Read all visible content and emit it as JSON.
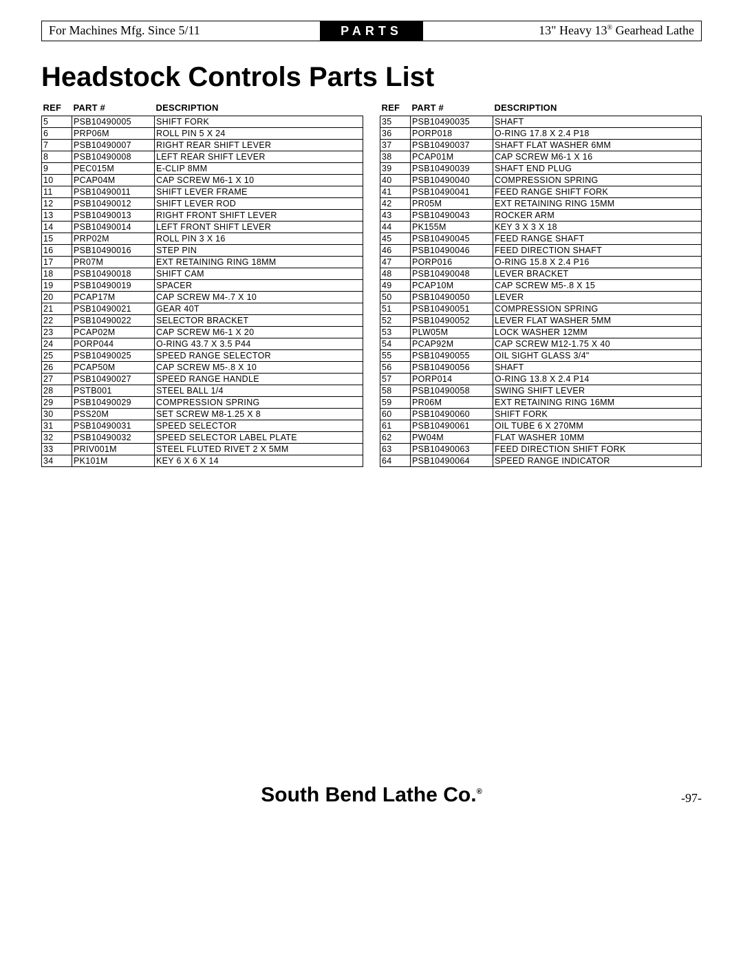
{
  "header": {
    "left": "For Machines Mfg. Since 5/11",
    "center": "PARTS",
    "right_prefix": "13\" Heavy 13",
    "right_suffix": " Gearhead Lathe"
  },
  "title": "Headstock Controls Parts List",
  "columns": {
    "ref": "REF",
    "part": "PART #",
    "desc": "DESCRIPTION"
  },
  "left_table": [
    {
      "ref": "5",
      "part": "PSB10490005",
      "desc": "SHIFT FORK"
    },
    {
      "ref": "6",
      "part": "PRP06M",
      "desc": "ROLL PIN 5 X 24"
    },
    {
      "ref": "7",
      "part": "PSB10490007",
      "desc": "RIGHT REAR SHIFT LEVER"
    },
    {
      "ref": "8",
      "part": "PSB10490008",
      "desc": "LEFT REAR SHIFT LEVER"
    },
    {
      "ref": "9",
      "part": "PEC015M",
      "desc": "E-CLIP 8MM"
    },
    {
      "ref": "10",
      "part": "PCAP04M",
      "desc": "CAP SCREW M6-1 X 10"
    },
    {
      "ref": "11",
      "part": "PSB10490011",
      "desc": "SHIFT LEVER FRAME"
    },
    {
      "ref": "12",
      "part": "PSB10490012",
      "desc": "SHIFT LEVER ROD"
    },
    {
      "ref": "13",
      "part": "PSB10490013",
      "desc": "RIGHT FRONT SHIFT LEVER"
    },
    {
      "ref": "14",
      "part": "PSB10490014",
      "desc": "LEFT FRONT SHIFT LEVER"
    },
    {
      "ref": "15",
      "part": "PRP02M",
      "desc": "ROLL PIN 3 X 16"
    },
    {
      "ref": "16",
      "part": "PSB10490016",
      "desc": "STEP PIN"
    },
    {
      "ref": "17",
      "part": "PR07M",
      "desc": "EXT RETAINING RING 18MM"
    },
    {
      "ref": "18",
      "part": "PSB10490018",
      "desc": "SHIFT CAM"
    },
    {
      "ref": "19",
      "part": "PSB10490019",
      "desc": "SPACER"
    },
    {
      "ref": "20",
      "part": "PCAP17M",
      "desc": "CAP SCREW M4-.7 X 10"
    },
    {
      "ref": "21",
      "part": "PSB10490021",
      "desc": "GEAR 40T"
    },
    {
      "ref": "22",
      "part": "PSB10490022",
      "desc": "SELECTOR BRACKET"
    },
    {
      "ref": "23",
      "part": "PCAP02M",
      "desc": "CAP SCREW M6-1 X 20"
    },
    {
      "ref": "24",
      "part": "PORP044",
      "desc": "O-RING 43.7 X 3.5 P44"
    },
    {
      "ref": "25",
      "part": "PSB10490025",
      "desc": "SPEED RANGE SELECTOR"
    },
    {
      "ref": "26",
      "part": "PCAP50M",
      "desc": "CAP SCREW M5-.8 X 10"
    },
    {
      "ref": "27",
      "part": "PSB10490027",
      "desc": "SPEED RANGE HANDLE"
    },
    {
      "ref": "28",
      "part": "PSTB001",
      "desc": "STEEL BALL 1/4"
    },
    {
      "ref": "29",
      "part": "PSB10490029",
      "desc": "COMPRESSION SPRING"
    },
    {
      "ref": "30",
      "part": "PSS20M",
      "desc": "SET SCREW M8-1.25 X 8"
    },
    {
      "ref": "31",
      "part": "PSB10490031",
      "desc": "SPEED SELECTOR"
    },
    {
      "ref": "32",
      "part": "PSB10490032",
      "desc": "SPEED SELECTOR LABEL PLATE"
    },
    {
      "ref": "33",
      "part": "PRIV001M",
      "desc": "STEEL FLUTED RIVET 2 X 5MM"
    },
    {
      "ref": "34",
      "part": "PK101M",
      "desc": "KEY 6 X 6 X 14"
    }
  ],
  "right_table": [
    {
      "ref": "35",
      "part": "PSB10490035",
      "desc": "SHAFT"
    },
    {
      "ref": "36",
      "part": "PORP018",
      "desc": "O-RING 17.8 X 2.4 P18"
    },
    {
      "ref": "37",
      "part": "PSB10490037",
      "desc": "SHAFT FLAT WASHER 6MM"
    },
    {
      "ref": "38",
      "part": "PCAP01M",
      "desc": "CAP SCREW M6-1 X 16"
    },
    {
      "ref": "39",
      "part": "PSB10490039",
      "desc": "SHAFT END PLUG"
    },
    {
      "ref": "40",
      "part": "PSB10490040",
      "desc": "COMPRESSION SPRING"
    },
    {
      "ref": "41",
      "part": "PSB10490041",
      "desc": "FEED RANGE SHIFT FORK"
    },
    {
      "ref": "42",
      "part": "PR05M",
      "desc": "EXT RETAINING RING 15MM"
    },
    {
      "ref": "43",
      "part": "PSB10490043",
      "desc": "ROCKER ARM"
    },
    {
      "ref": "44",
      "part": "PK155M",
      "desc": "KEY 3 X 3 X 18"
    },
    {
      "ref": "45",
      "part": "PSB10490045",
      "desc": "FEED RANGE SHAFT"
    },
    {
      "ref": "46",
      "part": "PSB10490046",
      "desc": "FEED DIRECTION SHAFT"
    },
    {
      "ref": "47",
      "part": "PORP016",
      "desc": "O-RING 15.8 X 2.4 P16"
    },
    {
      "ref": "48",
      "part": "PSB10490048",
      "desc": "LEVER BRACKET"
    },
    {
      "ref": "49",
      "part": "PCAP10M",
      "desc": "CAP SCREW M5-.8 X 15"
    },
    {
      "ref": "50",
      "part": "PSB10490050",
      "desc": "LEVER"
    },
    {
      "ref": "51",
      "part": "PSB10490051",
      "desc": "COMPRESSION SPRING"
    },
    {
      "ref": "52",
      "part": "PSB10490052",
      "desc": "LEVER FLAT WASHER 5MM"
    },
    {
      "ref": "53",
      "part": "PLW05M",
      "desc": "LOCK WASHER 12MM"
    },
    {
      "ref": "54",
      "part": "PCAP92M",
      "desc": "CAP SCREW M12-1.75 X 40"
    },
    {
      "ref": "55",
      "part": "PSB10490055",
      "desc": "OIL SIGHT GLASS 3/4\""
    },
    {
      "ref": "56",
      "part": "PSB10490056",
      "desc": "SHAFT"
    },
    {
      "ref": "57",
      "part": "PORP014",
      "desc": "O-RING 13.8 X 2.4 P14"
    },
    {
      "ref": "58",
      "part": "PSB10490058",
      "desc": "SWING SHIFT LEVER"
    },
    {
      "ref": "59",
      "part": "PR06M",
      "desc": "EXT RETAINING RING 16MM"
    },
    {
      "ref": "60",
      "part": "PSB10490060",
      "desc": "SHIFT FORK"
    },
    {
      "ref": "61",
      "part": "PSB10490061",
      "desc": "OIL TUBE 6 X 270MM"
    },
    {
      "ref": "62",
      "part": "PW04M",
      "desc": "FLAT WASHER 10MM"
    },
    {
      "ref": "63",
      "part": "PSB10490063",
      "desc": "FEED DIRECTION SHIFT FORK"
    },
    {
      "ref": "64",
      "part": "PSB10490064",
      "desc": "SPEED RANGE INDICATOR"
    }
  ],
  "footer": {
    "brand": "South Bend Lathe Co.",
    "page": "-97-"
  }
}
